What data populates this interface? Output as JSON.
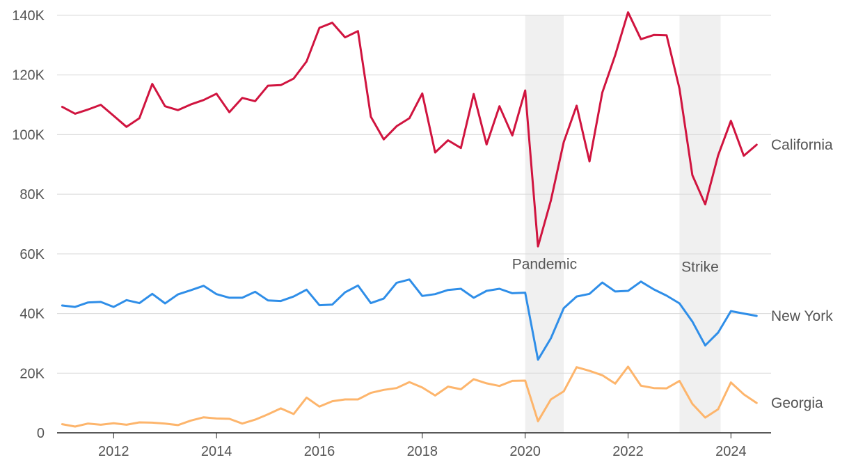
{
  "chart_data": {
    "type": "line",
    "title": "",
    "xlabel": "",
    "ylabel": "",
    "xlim": [
      2010.9,
      2024.78
    ],
    "ylim": [
      0,
      140000
    ],
    "grid": true,
    "legend": "direct labels at right end of lines",
    "y_ticks": [
      0,
      20000,
      40000,
      60000,
      80000,
      100000,
      120000,
      140000
    ],
    "y_tick_labels": [
      "0",
      "20K",
      "40K",
      "60K",
      "80K",
      "100K",
      "120K",
      "140K"
    ],
    "x_ticks": [
      2012,
      2014,
      2016,
      2018,
      2020,
      2022,
      2024
    ],
    "x_tick_labels": [
      "2012",
      "2014",
      "2016",
      "2018",
      "2020",
      "2022",
      "2024"
    ],
    "x": [
      2011.0,
      2011.25,
      2011.5,
      2011.75,
      2012.0,
      2012.25,
      2012.5,
      2012.75,
      2013.0,
      2013.25,
      2013.5,
      2013.75,
      2014.0,
      2014.25,
      2014.5,
      2014.75,
      2015.0,
      2015.25,
      2015.5,
      2015.75,
      2016.0,
      2016.25,
      2016.5,
      2016.75,
      2017.0,
      2017.25,
      2017.5,
      2017.75,
      2018.0,
      2018.25,
      2018.5,
      2018.75,
      2019.0,
      2019.25,
      2019.5,
      2019.75,
      2020.0,
      2020.25,
      2020.5,
      2020.75,
      2021.0,
      2021.25,
      2021.5,
      2021.75,
      2022.0,
      2022.25,
      2022.5,
      2022.75,
      2023.0,
      2023.25,
      2023.5,
      2023.75,
      2024.0,
      2024.25,
      2024.5
    ],
    "series": [
      {
        "name": "California",
        "color": "#d0143f",
        "values": [
          109300,
          107000,
          108400,
          110000,
          106300,
          102600,
          105500,
          117000,
          109500,
          108200,
          110100,
          111600,
          113700,
          107500,
          112300,
          111200,
          116400,
          116600,
          118800,
          124500,
          135800,
          137500,
          132600,
          134700,
          106000,
          98400,
          102800,
          105500,
          113800,
          94000,
          98100,
          95500,
          113600,
          96700,
          109500,
          99700,
          114800,
          62500,
          77900,
          97500,
          109700,
          91000,
          114100,
          126600,
          141000,
          132000,
          133400,
          133300,
          115400,
          86400,
          76600,
          93000,
          104600,
          92900,
          96600
        ]
      },
      {
        "name": "New York",
        "color": "#2f8ee8",
        "values": [
          42700,
          42200,
          43700,
          43900,
          42200,
          44500,
          43500,
          46600,
          43400,
          46400,
          47800,
          49300,
          46500,
          45300,
          45300,
          47300,
          44400,
          44200,
          45700,
          48000,
          42800,
          43000,
          47100,
          49400,
          43500,
          45000,
          50300,
          51400,
          45900,
          46500,
          47900,
          48300,
          45300,
          47600,
          48300,
          46800,
          47000,
          24500,
          31700,
          41800,
          45700,
          46600,
          50400,
          47400,
          47600,
          50700,
          48100,
          46000,
          43400,
          37300,
          29300,
          33600,
          40800,
          40000,
          39200
        ]
      },
      {
        "name": "Georgia",
        "color": "#fdb56c",
        "values": [
          2900,
          2100,
          3100,
          2700,
          3200,
          2700,
          3500,
          3400,
          3100,
          2600,
          4100,
          5200,
          4800,
          4700,
          3100,
          4400,
          6200,
          8200,
          6300,
          11800,
          8800,
          10600,
          11200,
          11200,
          13400,
          14400,
          15000,
          17000,
          15200,
          12500,
          15500,
          14600,
          18000,
          16600,
          15700,
          17400,
          17500,
          3900,
          11200,
          13900,
          22000,
          20800,
          19300,
          16500,
          22200,
          15800,
          15000,
          14900,
          17400,
          9700,
          5100,
          7900,
          16900,
          12900,
          10000
        ]
      }
    ],
    "annotations": [
      {
        "label": "Pandemic",
        "x_start": 2020.0,
        "x_end": 2020.75,
        "label_y": 55000
      },
      {
        "label": "Strike",
        "x_start": 2023.0,
        "x_end": 2023.8,
        "label_y": 54000
      }
    ]
  }
}
